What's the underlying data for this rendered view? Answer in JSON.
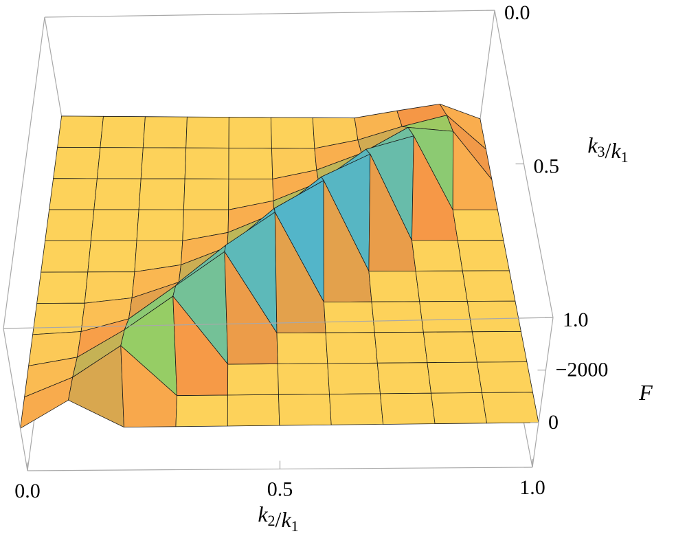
{
  "chart_data": {
    "type": "surface",
    "xlabel": "k2/k1",
    "ylabel": "k3/k1",
    "zlabel": "F",
    "x": [
      0,
      0.1,
      0.2,
      0.3,
      0.4,
      0.5,
      0.6,
      0.7,
      0.8,
      0.9,
      1
    ],
    "y": [
      0,
      0.1,
      0.2,
      0.3,
      0.4,
      0.5,
      0.6,
      0.7,
      0.8,
      0.9,
      1
    ],
    "z": [
      [
        0,
        0,
        0,
        0,
        0,
        0,
        0,
        0,
        -280,
        -540,
        0
      ],
      [
        0,
        0,
        0,
        0,
        0,
        0,
        0,
        -330,
        -840,
        -1260,
        0
      ],
      [
        0,
        0,
        0,
        0,
        0,
        0,
        -350,
        -990,
        -1960,
        -1800,
        0
      ],
      [
        0,
        0,
        0,
        0,
        0,
        -350,
        -1050,
        -2310,
        -2800,
        0,
        0
      ],
      [
        0,
        0,
        0,
        0,
        -320,
        -1050,
        -2450,
        -3300,
        0,
        0,
        0
      ],
      [
        0,
        0,
        0,
        -270,
        -960,
        -2450,
        -3500,
        0,
        0,
        0,
        0
      ],
      [
        0,
        0,
        -200,
        -810,
        -2240,
        -3500,
        0,
        0,
        0,
        0,
        0
      ],
      [
        0,
        -110,
        -600,
        -1890,
        -3200,
        0,
        0,
        0,
        0,
        0,
        0
      ],
      [
        0,
        -330,
        -1400,
        -2700,
        0,
        0,
        0,
        0,
        0,
        0,
        0
      ],
      [
        0,
        -770,
        -2000,
        0,
        0,
        0,
        0,
        0,
        0,
        0,
        0
      ],
      [
        0,
        -1100,
        0,
        0,
        0,
        0,
        0,
        0,
        0,
        0,
        0
      ]
    ],
    "xlim": [
      0,
      1
    ],
    "ylim": [
      0,
      1
    ],
    "zlim": [
      -4000,
      1700
    ],
    "z_reversed": true,
    "xticks": [
      {
        "value": 0,
        "label": "0.0"
      },
      {
        "value": 0.5,
        "label": "0.5"
      },
      {
        "value": 1,
        "label": "1.0"
      }
    ],
    "yticks": [
      {
        "value": 0,
        "label": "0.0"
      },
      {
        "value": 0.5,
        "label": "0.5"
      },
      {
        "value": 1,
        "label": "1.0"
      }
    ],
    "zticks": [
      {
        "value": -2000,
        "label": "−2000"
      },
      0
    ],
    "mesh": true
  }
}
